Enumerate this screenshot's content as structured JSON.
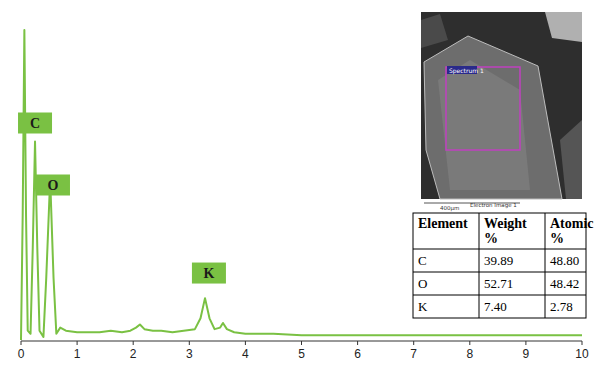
{
  "chart_data": {
    "type": "line",
    "color": "#7ac143",
    "x": [
      0,
      0.03,
      0.06,
      0.09,
      0.12,
      0.17,
      0.21,
      0.25,
      0.29,
      0.33,
      0.4,
      0.45,
      0.52,
      0.58,
      0.63,
      0.7,
      0.8,
      1.0,
      1.2,
      1.4,
      1.6,
      1.8,
      1.95,
      2.05,
      2.12,
      2.2,
      2.35,
      2.5,
      2.7,
      2.9,
      3.1,
      3.2,
      3.28,
      3.36,
      3.45,
      3.55,
      3.6,
      3.67,
      3.8,
      4,
      4.5,
      5,
      5.5,
      6,
      6.5,
      7,
      7.5,
      8,
      8.5,
      9,
      9.5,
      10
    ],
    "values": [
      0,
      40,
      100,
      40,
      3,
      2,
      30,
      64,
      30,
      3,
      1,
      20,
      52,
      20,
      2,
      4,
      3,
      2.5,
      2.5,
      2.5,
      3,
      2.5,
      3,
      4,
      5,
      3.5,
      3,
      3,
      2.5,
      3,
      3.5,
      7,
      13.5,
      7,
      3.5,
      4,
      5.5,
      3.5,
      2.5,
      2,
      2,
      1.5,
      1.5,
      1.5,
      1.5,
      1.5,
      1.5,
      1.5,
      1.5,
      1.5,
      1.5,
      1.5
    ],
    "xlim": [
      0,
      10
    ],
    "ylim": [
      0,
      100
    ],
    "xticks": [
      0,
      1,
      2,
      3,
      4,
      5,
      6,
      7,
      8,
      9,
      10
    ],
    "tick_labels": "x",
    "annotations": [
      {
        "text": "C",
        "x": 0.25,
        "y": 70
      },
      {
        "text": "O",
        "x": 0.57,
        "y": 50
      },
      {
        "text": "K",
        "x": 3.35,
        "y": 21.6
      }
    ]
  },
  "inset": {
    "spectrum_label": "Spectrum 1",
    "scale_label": "400µm",
    "caption": "Electron Image 1"
  },
  "table": {
    "header": [
      "Element",
      "Weight %",
      "Atomic %"
    ],
    "rows": [
      [
        "C",
        "39.89",
        "48.80"
      ],
      [
        "O",
        "52.71",
        "48.42"
      ],
      [
        "K",
        "7.40",
        "2.78"
      ]
    ]
  }
}
